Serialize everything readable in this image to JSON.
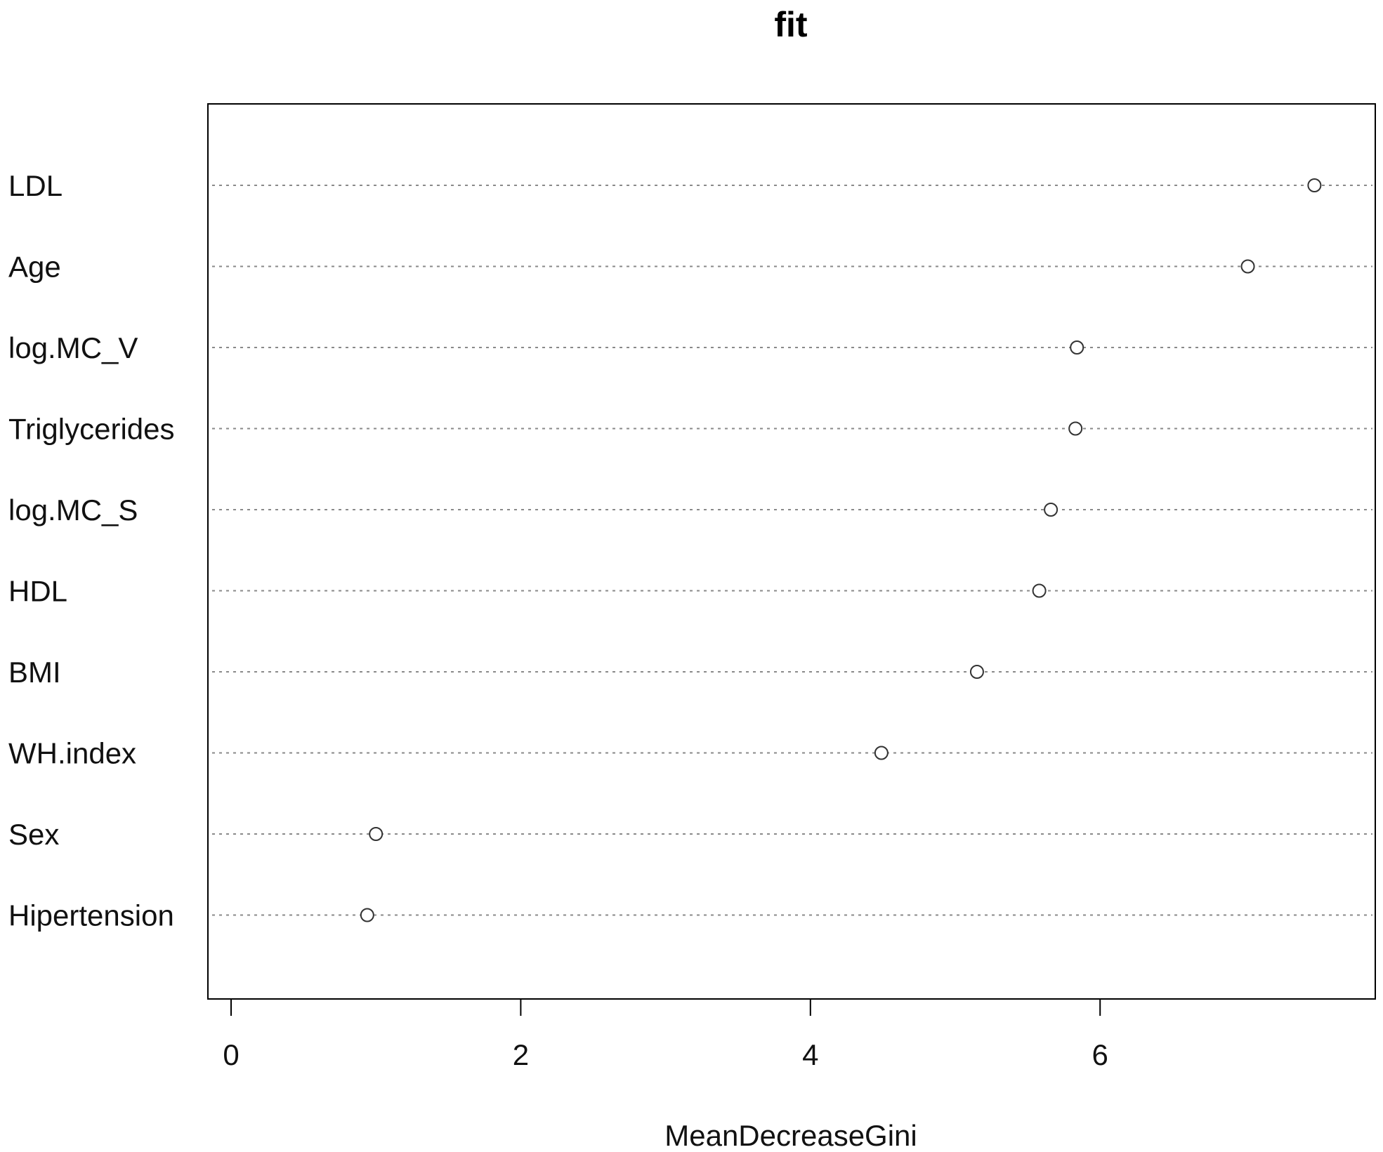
{
  "chart_data": {
    "type": "scatter",
    "title": "fit",
    "xlabel": "MeanDecreaseGini",
    "ylabel": "",
    "xlim": [
      -0.16,
      7.9
    ],
    "xticks": [
      0,
      2,
      4,
      6
    ],
    "grid": "dotted horizontal guide lines per category",
    "categories": [
      "LDL",
      "Age",
      "log.MC_V",
      "Triglycerides",
      "log.MC_S",
      "HDL",
      "BMI",
      "WH.index",
      "Sex",
      "Hipertension"
    ],
    "values": [
      7.48,
      7.02,
      5.84,
      5.83,
      5.66,
      5.58,
      5.15,
      4.49,
      1.0,
      0.94
    ]
  }
}
